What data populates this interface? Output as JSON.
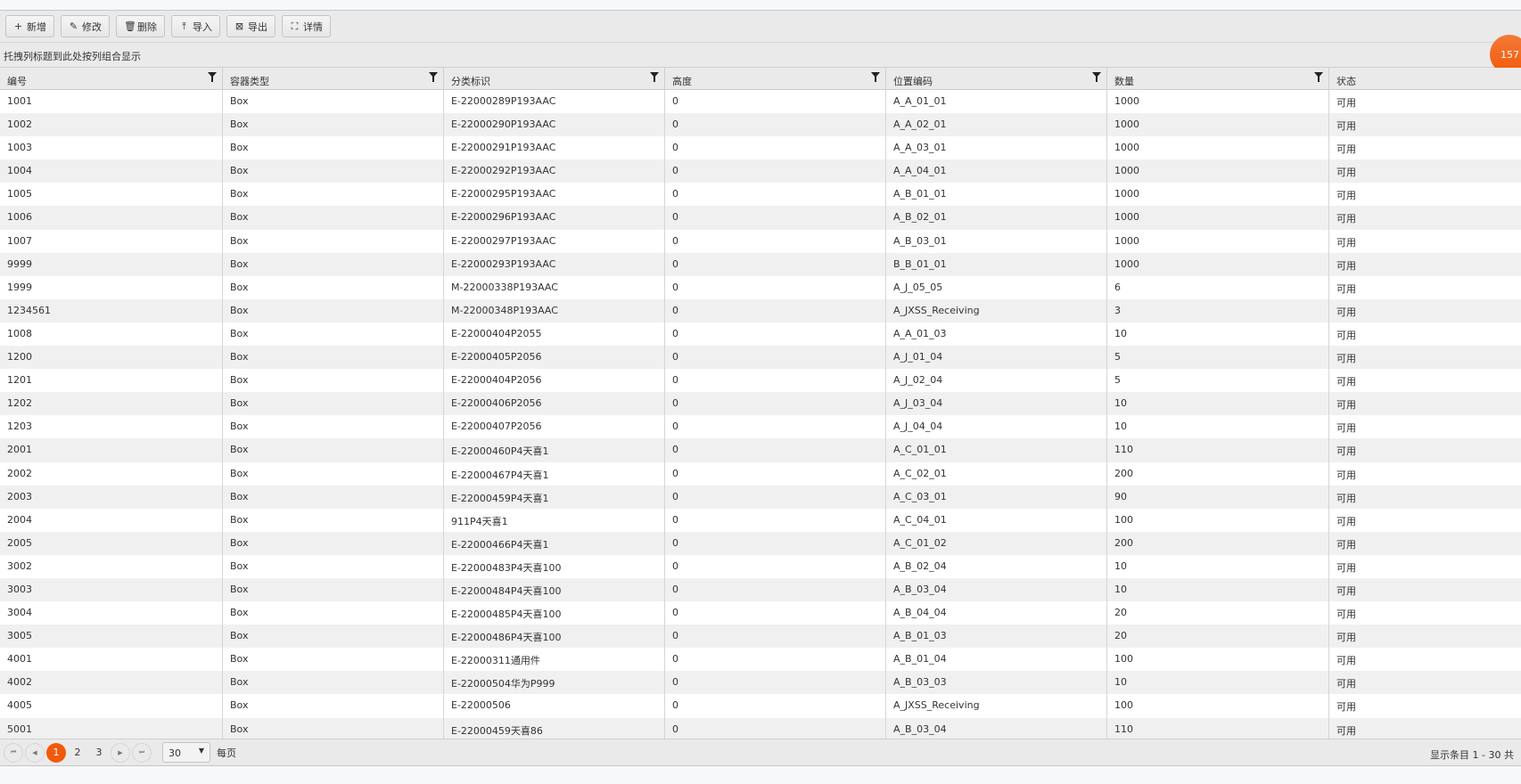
{
  "toolbar": {
    "buttons": [
      {
        "label": "新增",
        "icon": "plus-icon",
        "glyph": "+"
      },
      {
        "label": "修改",
        "icon": "pencil-icon",
        "glyph": "✎"
      },
      {
        "label": "删除",
        "icon": "trash-icon",
        "glyph": "🗑"
      },
      {
        "label": "导入",
        "icon": "upload-icon",
        "glyph": "⤒"
      },
      {
        "label": "导出",
        "icon": "excel-icon",
        "glyph": "⊠"
      },
      {
        "label": "详情",
        "icon": "details-icon",
        "glyph": "⛶"
      }
    ]
  },
  "group_hint": "托拽列标题到此处按列组合显示",
  "badge": "157",
  "accent": "#f05a0a",
  "columns": [
    {
      "label": "编号",
      "filter": true
    },
    {
      "label": "容器类型",
      "filter": true
    },
    {
      "label": "分类标识",
      "filter": true
    },
    {
      "label": "高度",
      "filter": true
    },
    {
      "label": "位置编码",
      "filter": true
    },
    {
      "label": "数量",
      "filter": true
    },
    {
      "label": "状态",
      "filter": false
    }
  ],
  "rows": [
    [
      "1001",
      "Box",
      "E-22000289P193AAC",
      "0",
      "A_A_01_01",
      "1000",
      "可用"
    ],
    [
      "1002",
      "Box",
      "E-22000290P193AAC",
      "0",
      "A_A_02_01",
      "1000",
      "可用"
    ],
    [
      "1003",
      "Box",
      "E-22000291P193AAC",
      "0",
      "A_A_03_01",
      "1000",
      "可用"
    ],
    [
      "1004",
      "Box",
      "E-22000292P193AAC",
      "0",
      "A_A_04_01",
      "1000",
      "可用"
    ],
    [
      "1005",
      "Box",
      "E-22000295P193AAC",
      "0",
      "A_B_01_01",
      "1000",
      "可用"
    ],
    [
      "1006",
      "Box",
      "E-22000296P193AAC",
      "0",
      "A_B_02_01",
      "1000",
      "可用"
    ],
    [
      "1007",
      "Box",
      "E-22000297P193AAC",
      "0",
      "A_B_03_01",
      "1000",
      "可用"
    ],
    [
      "9999",
      "Box",
      "E-22000293P193AAC",
      "0",
      "B_B_01_01",
      "1000",
      "可用"
    ],
    [
      "1999",
      "Box",
      "M-22000338P193AAC",
      "0",
      "A_J_05_05",
      "6",
      "可用"
    ],
    [
      "1234561",
      "Box",
      "M-22000348P193AAC",
      "0",
      "A_JXSS_Receiving",
      "3",
      "可用"
    ],
    [
      "1008",
      "Box",
      "E-22000404P2055",
      "0",
      "A_A_01_03",
      "10",
      "可用"
    ],
    [
      "1200",
      "Box",
      "E-22000405P2056",
      "0",
      "A_J_01_04",
      "5",
      "可用"
    ],
    [
      "1201",
      "Box",
      "E-22000404P2056",
      "0",
      "A_J_02_04",
      "5",
      "可用"
    ],
    [
      "1202",
      "Box",
      "E-22000406P2056",
      "0",
      "A_J_03_04",
      "10",
      "可用"
    ],
    [
      "1203",
      "Box",
      "E-22000407P2056",
      "0",
      "A_J_04_04",
      "10",
      "可用"
    ],
    [
      "2001",
      "Box",
      "E-22000460P4天喜1",
      "0",
      "A_C_01_01",
      "110",
      "可用"
    ],
    [
      "2002",
      "Box",
      "E-22000467P4天喜1",
      "0",
      "A_C_02_01",
      "200",
      "可用"
    ],
    [
      "2003",
      "Box",
      "E-22000459P4天喜1",
      "0",
      "A_C_03_01",
      "90",
      "可用"
    ],
    [
      "2004",
      "Box",
      "911P4天喜1",
      "0",
      "A_C_04_01",
      "100",
      "可用"
    ],
    [
      "2005",
      "Box",
      "E-22000466P4天喜1",
      "0",
      "A_C_01_02",
      "200",
      "可用"
    ],
    [
      "3002",
      "Box",
      "E-22000483P4天喜100",
      "0",
      "A_B_02_04",
      "10",
      "可用"
    ],
    [
      "3003",
      "Box",
      "E-22000484P4天喜100",
      "0",
      "A_B_03_04",
      "10",
      "可用"
    ],
    [
      "3004",
      "Box",
      "E-22000485P4天喜100",
      "0",
      "A_B_04_04",
      "20",
      "可用"
    ],
    [
      "3005",
      "Box",
      "E-22000486P4天喜100",
      "0",
      "A_B_01_03",
      "20",
      "可用"
    ],
    [
      "4001",
      "Box",
      "E-22000311通用件",
      "0",
      "A_B_01_04",
      "100",
      "可用"
    ],
    [
      "4002",
      "Box",
      "E-22000504华为P999",
      "0",
      "A_B_03_03",
      "10",
      "可用"
    ],
    [
      "4005",
      "Box",
      "E-22000506",
      "0",
      "A_JXSS_Receiving",
      "100",
      "可用"
    ],
    [
      "5001",
      "Box",
      "E-22000459天喜86",
      "0",
      "A_B_03_04",
      "110",
      "可用"
    ]
  ],
  "pager": {
    "pages": [
      "1",
      "2",
      "3"
    ],
    "current": "1",
    "page_size": "30",
    "per_page_label": "每页",
    "info": "显示条目 1 - 30 共"
  }
}
